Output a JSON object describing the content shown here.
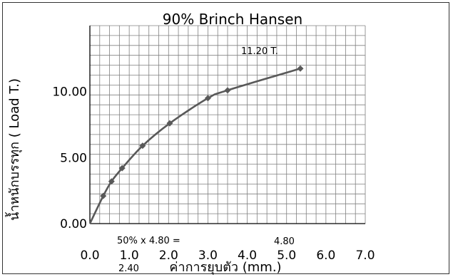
{
  "chart_data": {
    "type": "line",
    "title": "90% Brinch Hansen",
    "xlabel": "ค่าการยุบตัว (mm.)",
    "ylabel": "น้ำหนักบรรทุก ( Load T.)",
    "xlim": [
      0,
      7
    ],
    "ylim": [
      0,
      15
    ],
    "x_ticks": [
      "0.0",
      "1.0",
      "2.0",
      "3.0",
      "4.0",
      "5.0",
      "6.0",
      "7.0"
    ],
    "y_ticks": [
      "0.00",
      "5.00",
      "10.00"
    ],
    "grid": true,
    "series": [
      {
        "x": [
          0.0,
          0.34,
          0.55,
          0.82,
          1.34,
          2.03,
          3.0,
          3.5,
          5.35
        ],
        "y": [
          0.0,
          2.1,
          3.2,
          4.2,
          5.9,
          7.6,
          9.5,
          10.1,
          11.75
        ],
        "color": "#595959"
      }
    ],
    "annotations": {
      "peak_label": "11.20 T.",
      "half_label": "50% x 4.80 =",
      "half_value": "4.80",
      "half_x": "2.40"
    }
  }
}
